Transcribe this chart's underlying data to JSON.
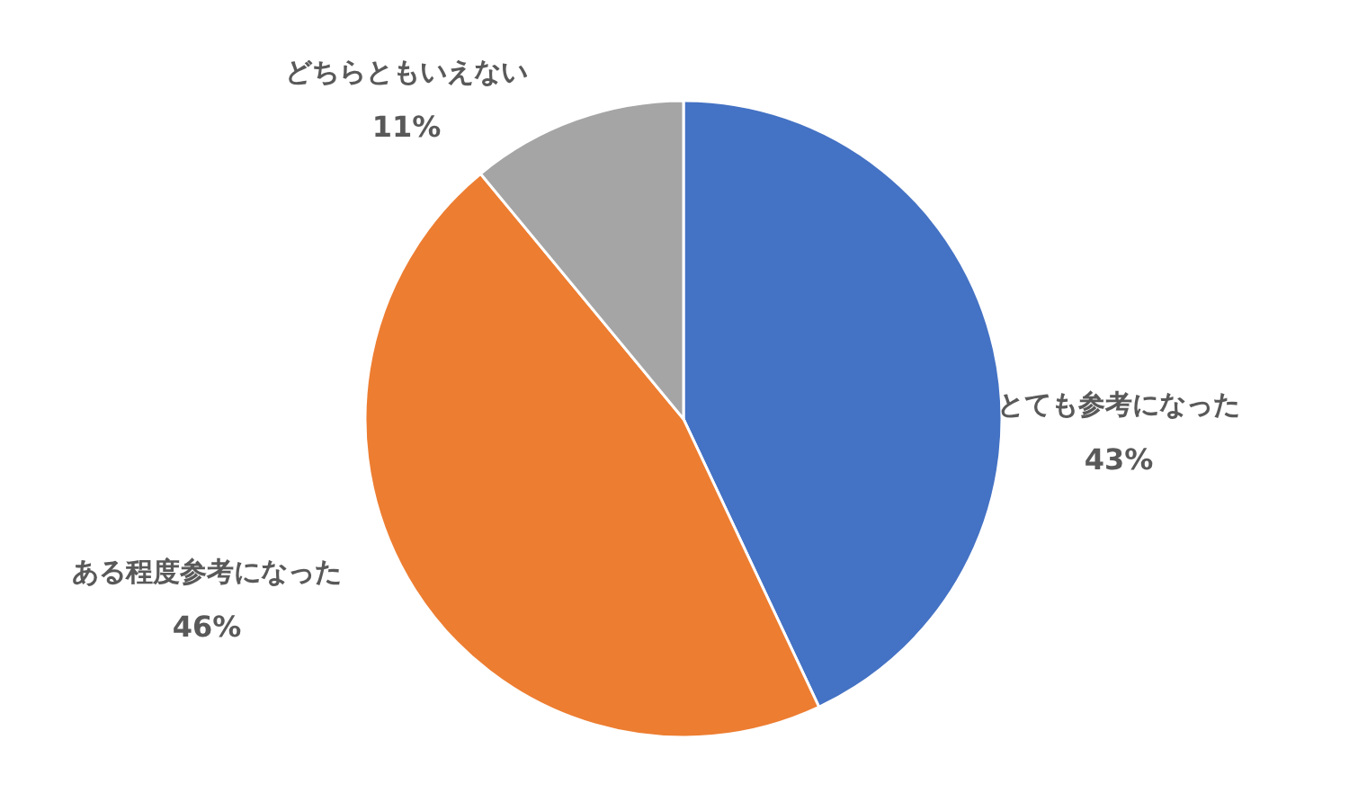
{
  "chart_data": {
    "type": "pie",
    "categories": [
      "とても参考になった",
      "ある程度参考になった",
      "どちらともいえない"
    ],
    "values": [
      43,
      46,
      11
    ],
    "colors": [
      "#4472c4",
      "#ed7d31",
      "#a5a5a5"
    ],
    "value_labels": [
      "43%",
      "46%",
      "11%"
    ]
  }
}
